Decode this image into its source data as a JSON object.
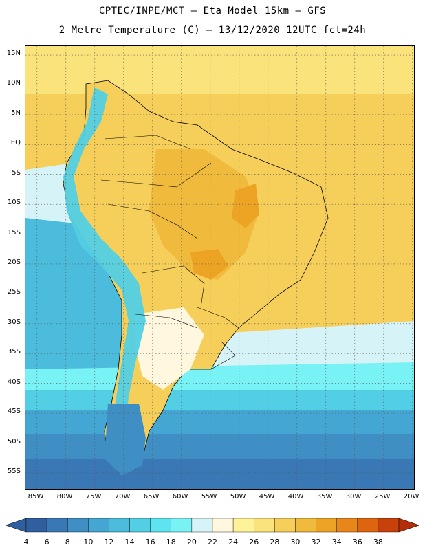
{
  "header": {
    "title_line1": "CPTEC/INPE/MCT –  Eta Model 15km – GFS",
    "title_line2": "2 Metre Temperature (C) – 13/12/2020 12UTC fct=24h"
  },
  "map": {
    "lat_labels": [
      "15N",
      "10N",
      "5N",
      "EQ",
      "5S",
      "10S",
      "15S",
      "20S",
      "25S",
      "30S",
      "35S",
      "40S",
      "45S",
      "50S",
      "55S"
    ],
    "lon_labels": [
      "85W",
      "80W",
      "75W",
      "70W",
      "65W",
      "60W",
      "55W",
      "50W",
      "45W",
      "40W",
      "35W",
      "30W",
      "25W",
      "20W"
    ],
    "lat_extent": [
      16.5,
      -58
    ],
    "lon_extent": [
      -87,
      -19.5
    ]
  },
  "legend": {
    "values": [
      "4",
      "6",
      "8",
      "10",
      "12",
      "14",
      "16",
      "18",
      "20",
      "22",
      "24",
      "26",
      "28",
      "30",
      "32",
      "34",
      "36",
      "38"
    ],
    "colors": [
      "#2f5f9e",
      "#3a78b5",
      "#3f8fc4",
      "#44a6d2",
      "#4bbcdc",
      "#52cfe4",
      "#5ee4ee",
      "#78f2f5",
      "#d6f4f8",
      "#fff7de",
      "#fff39a",
      "#fbe37c",
      "#f5cf5a",
      "#f0bb3c",
      "#eda424",
      "#e8861a",
      "#de6410",
      "#c8400a",
      "#b32d08"
    ]
  }
}
